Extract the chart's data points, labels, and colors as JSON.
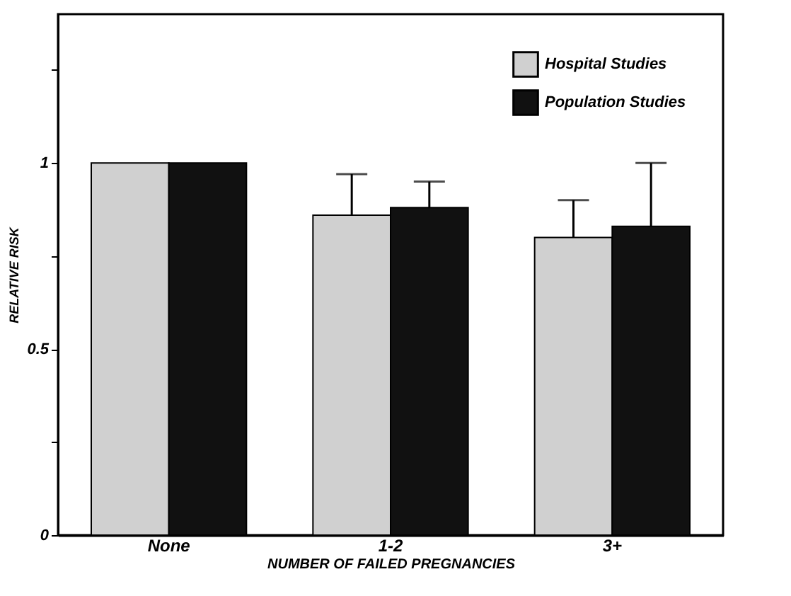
{
  "chart_data": {
    "type": "bar",
    "xlabel": "NUMBER OF FAILED PREGNANCIES",
    "ylabel": "RELATIVE RISK",
    "categories": [
      "None",
      "1-2",
      "3+"
    ],
    "series": [
      {
        "name": "Hospital Studies",
        "color": "#d0d0d0",
        "values": [
          1.0,
          0.86,
          0.8
        ],
        "errors": [
          null,
          0.11,
          0.1
        ]
      },
      {
        "name": "Population Studies",
        "color": "#111111",
        "values": [
          1.0,
          0.88,
          0.83
        ],
        "errors": [
          null,
          0.07,
          0.17
        ]
      }
    ],
    "ylim": [
      0,
      1.4
    ],
    "yticks": [
      0,
      {
        "value": 0.25,
        "label": null
      },
      0.5,
      {
        "value": 0.75,
        "label": null
      },
      1,
      {
        "value": 1.25,
        "label": null
      }
    ],
    "grid": false,
    "legend": "top right"
  }
}
